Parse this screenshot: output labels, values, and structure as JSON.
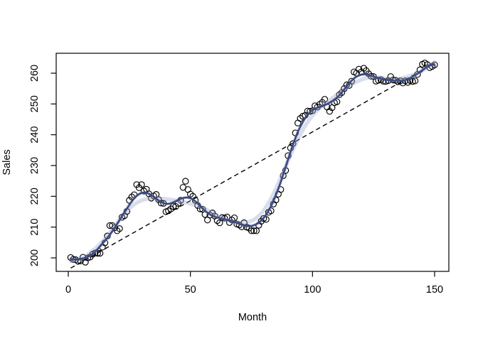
{
  "chart_data": {
    "type": "scatter",
    "title": "",
    "xlabel": "Month",
    "ylabel": "Sales",
    "x_start": 1,
    "x_ticks": [
      0,
      50,
      100,
      150
    ],
    "y_ticks": [
      200,
      210,
      220,
      230,
      240,
      250,
      260
    ],
    "xlim": [
      -5,
      156
    ],
    "ylim": [
      195.6,
      266.5
    ],
    "grid": false,
    "legend": "none",
    "series": [
      {
        "name": "sales-observations",
        "type": "scatter",
        "marker": "open-circle",
        "color": "#000000",
        "values": [
          200.1,
          199.5,
          199.4,
          198.9,
          199.0,
          200.2,
          198.6,
          200.0,
          200.3,
          201.2,
          201.6,
          201.5,
          201.5,
          203.5,
          204.9,
          207.1,
          210.5,
          210.5,
          209.8,
          208.8,
          209.5,
          213.2,
          213.7,
          215.1,
          218.7,
          219.8,
          220.5,
          223.8,
          222.8,
          223.8,
          221.7,
          222.3,
          220.8,
          219.4,
          220.1,
          220.6,
          218.9,
          217.8,
          217.7,
          215.0,
          215.3,
          215.9,
          216.7,
          216.7,
          217.7,
          218.7,
          222.9,
          224.9,
          222.2,
          220.7,
          220.0,
          218.7,
          217.0,
          215.9,
          215.8,
          214.1,
          212.3,
          213.9,
          214.6,
          213.6,
          212.1,
          211.4,
          213.1,
          212.9,
          213.3,
          211.5,
          212.3,
          213.0,
          211.0,
          210.7,
          210.1,
          211.4,
          210.0,
          209.7,
          208.8,
          208.8,
          208.8,
          210.6,
          211.9,
          212.8,
          212.5,
          214.8,
          215.3,
          217.5,
          218.8,
          220.7,
          222.2,
          226.7,
          228.4,
          233.2,
          235.7,
          237.1,
          240.6,
          243.8,
          245.3,
          246.0,
          246.3,
          247.7,
          247.6,
          247.8,
          249.4,
          249.0,
          249.9,
          250.5,
          251.5,
          249.0,
          247.6,
          248.8,
          250.4,
          250.7,
          253.0,
          253.7,
          255.0,
          256.2,
          256.0,
          257.4,
          260.4,
          260.0,
          261.3,
          260.4,
          261.6,
          260.8,
          259.8,
          259.0,
          258.9,
          257.4,
          257.7,
          257.9,
          257.4,
          257.3,
          257.6,
          258.9,
          257.8,
          257.7,
          257.2,
          257.5,
          256.8,
          257.5,
          257.0,
          257.6,
          257.3,
          257.5,
          259.6,
          261.1,
          262.9,
          263.3,
          262.8,
          261.8,
          262.2,
          262.7
        ]
      },
      {
        "name": "loess-smooth",
        "type": "line",
        "color": "#38477f",
        "halo_color_inner": "rgba(110,121,170,0.5)",
        "halo_color_outer": "rgba(150,159,200,0.35)",
        "core_bandwidth": 9,
        "halo_bandwidth": 16
      },
      {
        "name": "linear-fit",
        "type": "line",
        "style": "dashed",
        "color": "#000000"
      }
    ]
  },
  "colors": {
    "background": "#ffffff",
    "axis": "#000000",
    "point_outline": "#000000",
    "smooth_core": "#38477f",
    "smooth_halo": "#8a94bf",
    "dashed_line": "#000000"
  }
}
